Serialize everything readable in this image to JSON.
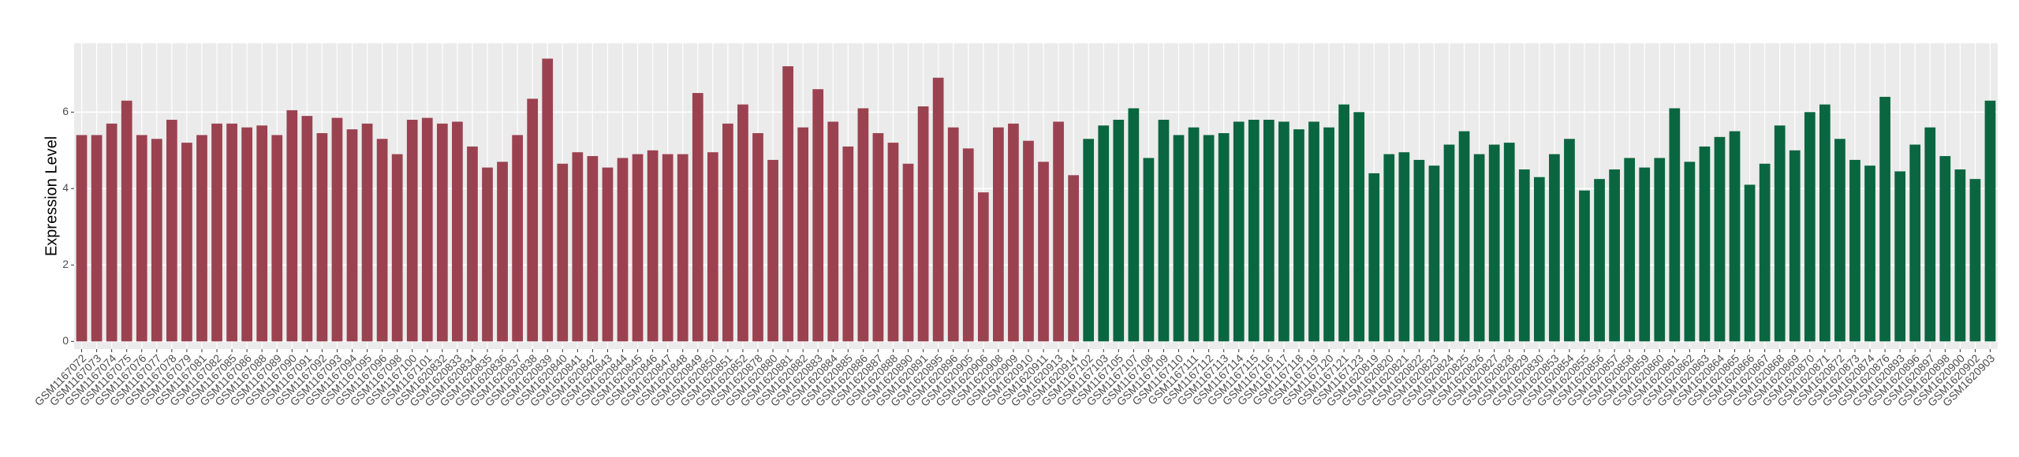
{
  "chart_data": {
    "type": "bar",
    "y_label": "Expression Level",
    "categories": [
      "GSM1167072",
      "GSM1167073",
      "GSM1167074",
      "GSM1167075",
      "GSM1167076",
      "GSM1167077",
      "GSM1167078",
      "GSM1167079",
      "GSM1167081",
      "GSM1167082",
      "GSM1167085",
      "GSM1167086",
      "GSM1167088",
      "GSM1167089",
      "GSM1167090",
      "GSM1167091",
      "GSM1167092",
      "GSM1167093",
      "GSM1167094",
      "GSM1167095",
      "GSM1167096",
      "GSM1167098",
      "GSM1167100",
      "GSM1167101",
      "GSM1620832",
      "GSM1620833",
      "GSM1620834",
      "GSM1620835",
      "GSM1620836",
      "GSM1620837",
      "GSM1620838",
      "GSM1620839",
      "GSM1620840",
      "GSM1620841",
      "GSM1620842",
      "GSM1620843",
      "GSM1620844",
      "GSM1620845",
      "GSM1620846",
      "GSM1620847",
      "GSM1620848",
      "GSM1620849",
      "GSM1620850",
      "GSM1620851",
      "GSM1620852",
      "GSM1620878",
      "GSM1620880",
      "GSM1620881",
      "GSM1620882",
      "GSM1620883",
      "GSM1620884",
      "GSM1620885",
      "GSM1620886",
      "GSM1620887",
      "GSM1620888",
      "GSM1620890",
      "GSM1620891",
      "GSM1620895",
      "GSM1620896",
      "GSM1620905",
      "GSM1620906",
      "GSM1620908",
      "GSM1620909",
      "GSM1620910",
      "GSM1620911",
      "GSM1620913",
      "GSM1620914",
      "GSM1167102",
      "GSM1167103",
      "GSM1167105",
      "GSM1167107",
      "GSM1167108",
      "GSM1167109",
      "GSM1167110",
      "GSM1167111",
      "GSM1167112",
      "GSM1167113",
      "GSM1167114",
      "GSM1167115",
      "GSM1167116",
      "GSM1167117",
      "GSM1167118",
      "GSM1167119",
      "GSM1167120",
      "GSM1167121",
      "GSM1167123",
      "GSM1620819",
      "GSM1620820",
      "GSM1620821",
      "GSM1620822",
      "GSM1620823",
      "GSM1620824",
      "GSM1620825",
      "GSM1620826",
      "GSM1620827",
      "GSM1620828",
      "GSM1620829",
      "GSM1620830",
      "GSM1620853",
      "GSM1620854",
      "GSM1620855",
      "GSM1620856",
      "GSM1620857",
      "GSM1620858",
      "GSM1620859",
      "GSM1620860",
      "GSM1620861",
      "GSM1620862",
      "GSM1620863",
      "GSM1620864",
      "GSM1620865",
      "GSM1620866",
      "GSM1620867",
      "GSM1620868",
      "GSM1620869",
      "GSM1620870",
      "GSM1620871",
      "GSM1620872",
      "GSM1620873",
      "GSM1620874",
      "GSM1620876",
      "GSM1620893",
      "GSM1620896",
      "GSM1620897",
      "GSM1620898",
      "GSM1620900",
      "GSM1620902",
      "GSM1620903"
    ],
    "series": [
      {
        "color": "#9b4250",
        "values": [
          5.4,
          5.4,
          5.7,
          6.3,
          5.4,
          5.3,
          5.8,
          5.2,
          5.4,
          5.7,
          5.7,
          5.6,
          5.65,
          5.4,
          6.05,
          5.9,
          5.45,
          5.85,
          5.55,
          5.7,
          5.3,
          4.9,
          5.8,
          5.85,
          5.7,
          5.75,
          5.1,
          4.55,
          4.7,
          5.4,
          6.35,
          7.4,
          4.65,
          4.95,
          4.85,
          4.55,
          4.8,
          4.9,
          5.0,
          4.9,
          4.9,
          6.5,
          4.95,
          5.7,
          6.2,
          5.45,
          4.75,
          7.2,
          5.6,
          6.6,
          5.75,
          5.1,
          6.1,
          5.45,
          5.2,
          4.65,
          6.15,
          6.9,
          5.6,
          5.05,
          3.9,
          5.6,
          5.7,
          5.25,
          4.7,
          5.75,
          4.35,
          null,
          null,
          null,
          null,
          null,
          null,
          null,
          null,
          null,
          null,
          null,
          null,
          null,
          null,
          null,
          null,
          null,
          null,
          null,
          null,
          null,
          null,
          null,
          null,
          null,
          null,
          null,
          null,
          null,
          null,
          null,
          null,
          null,
          null,
          null,
          null,
          null,
          null,
          null,
          null,
          null,
          null,
          null,
          null,
          null,
          null,
          null,
          null,
          null,
          null,
          null,
          null,
          null,
          null,
          null,
          null,
          null,
          null,
          null,
          null,
          null
        ]
      },
      {
        "color": "#0a6640",
        "values": [
          null,
          null,
          null,
          null,
          null,
          null,
          null,
          null,
          null,
          null,
          null,
          null,
          null,
          null,
          null,
          null,
          null,
          null,
          null,
          null,
          null,
          null,
          null,
          null,
          null,
          null,
          null,
          null,
          null,
          null,
          null,
          null,
          null,
          null,
          null,
          null,
          null,
          null,
          null,
          null,
          null,
          null,
          null,
          null,
          null,
          null,
          null,
          null,
          null,
          null,
          null,
          null,
          null,
          null,
          null,
          null,
          null,
          null,
          null,
          null,
          null,
          null,
          null,
          null,
          null,
          null,
          null,
          5.3,
          5.65,
          5.8,
          6.1,
          4.8,
          5.8,
          5.4,
          5.6,
          5.4,
          5.45,
          5.75,
          5.8,
          5.8,
          5.75,
          5.55,
          5.75,
          5.6,
          6.2,
          6.0,
          4.4,
          4.9,
          4.95,
          4.75,
          4.6,
          5.15,
          5.5,
          4.9,
          5.15,
          5.2,
          4.5,
          4.3,
          4.9,
          5.3,
          3.95,
          4.25,
          4.5,
          4.8,
          4.55,
          4.8,
          6.1,
          4.7,
          5.1,
          5.35,
          5.5,
          4.1,
          4.65,
          5.65,
          5.0,
          6.0,
          6.2,
          5.3,
          4.75,
          4.6,
          6.4,
          4.45,
          5.15,
          5.6,
          4.85,
          4.5,
          4.25,
          6.3
        ]
      }
    ],
    "ylim": [
      -0.2,
      7.8
    ],
    "yticks": [
      0,
      2,
      4,
      6
    ],
    "grid": true
  }
}
